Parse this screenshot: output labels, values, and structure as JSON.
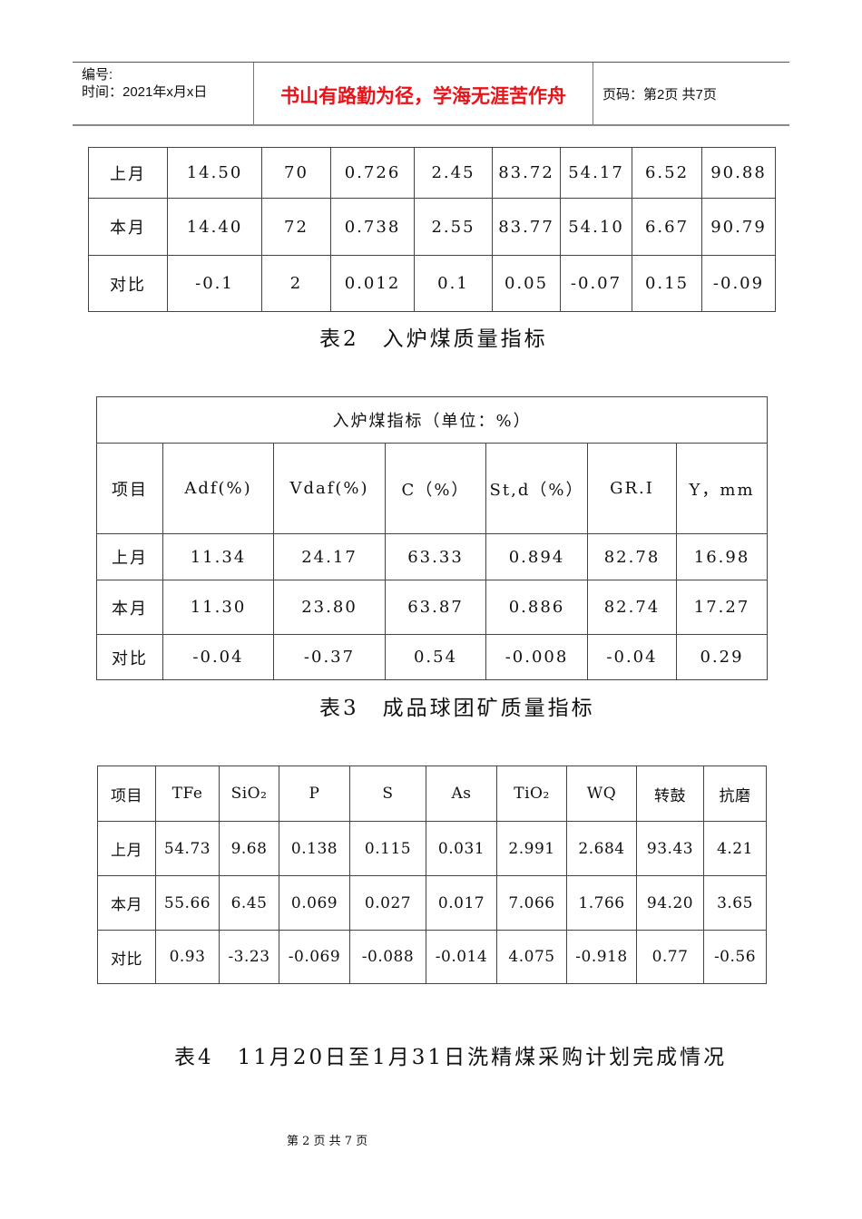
{
  "header": {
    "number_label": "编号:",
    "time_label": "时间：2021年x月x日",
    "motto": "书山有路勤为径，学海无涯苦作舟",
    "page_info": "页码：第2页 共7页"
  },
  "table1": {
    "rows": [
      [
        "上月",
        "14.50",
        "70",
        "0.726",
        "2.45",
        "83.72",
        "54.17",
        "6.52",
        "90.88"
      ],
      [
        "本月",
        "14.40",
        "72",
        "0.738",
        "2.55",
        "83.77",
        "54.10",
        "6.67",
        "90.79"
      ],
      [
        "对比",
        "-0.1",
        "2",
        "0.012",
        "0.1",
        "0.05",
        "-0.07",
        "0.15",
        "-0.09"
      ]
    ]
  },
  "caption2": "表2　入炉煤质量指标",
  "table2": {
    "title": "入炉煤指标（单位：%）",
    "headers": [
      "项目",
      "Adf(%)",
      "Vdaf(%)",
      "C（%）",
      "St,d（%）",
      "GR.I",
      "Y，mm"
    ],
    "rows": [
      [
        "上月",
        "11.34",
        "24.17",
        "63.33",
        "0.894",
        "82.78",
        "16.98"
      ],
      [
        "本月",
        "11.30",
        "23.80",
        "63.87",
        "0.886",
        "82.74",
        "17.27"
      ],
      [
        "对比",
        "-0.04",
        "-0.37",
        "0.54",
        "-0.008",
        "-0.04",
        "0.29"
      ]
    ]
  },
  "caption3": "表3　成品球团矿质量指标",
  "table3": {
    "headers": [
      "项目",
      "TFe",
      "SiO₂",
      "P",
      "S",
      "As",
      "TiO₂",
      "WQ",
      "转鼓",
      "抗磨"
    ],
    "rows": [
      [
        "上月",
        "54.73",
        "9.68",
        "0.138",
        "0.115",
        "0.031",
        "2.991",
        "2.684",
        "93.43",
        "4.21"
      ],
      [
        "本月",
        "55.66",
        "6.45",
        "0.069",
        "0.027",
        "0.017",
        "7.066",
        "1.766",
        "94.20",
        "3.65"
      ],
      [
        "对比",
        "0.93",
        "-3.23",
        "-0.069",
        "-0.088",
        "-0.014",
        "4.075",
        "-0.918",
        "0.77",
        "-0.56"
      ]
    ]
  },
  "caption4": "表4　11月20日至1月31日洗精煤采购计划完成情况",
  "footer": "第 2 页 共 7 页",
  "colors": {
    "motto": "#e8141a"
  }
}
